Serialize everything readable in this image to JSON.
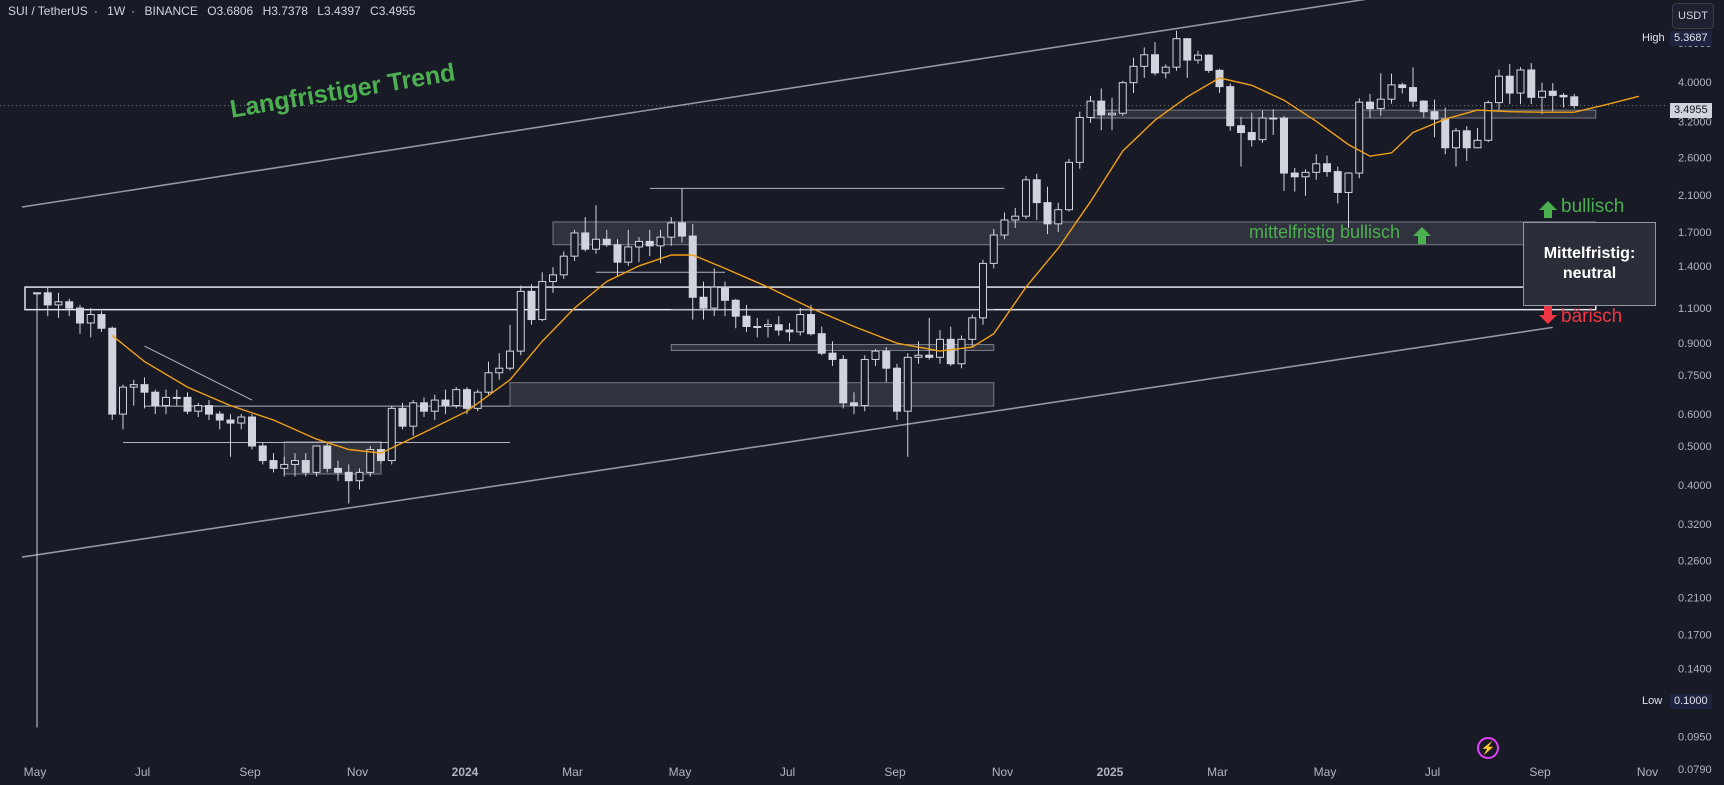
{
  "header": {
    "symbol": "SUI / TetherUS",
    "interval": "1W",
    "exchange": "BINANCE",
    "open": "O3.6806",
    "high": "H3.7378",
    "low": "L3.4397",
    "close": "C3.4955"
  },
  "currency_button": "USDT",
  "price_tags": {
    "high_label": "High",
    "high_value": "5.3687",
    "current": "3.4955",
    "low_label": "Low",
    "low_value": "0.1000"
  },
  "annotations": {
    "long_term": "Langfristiger Trend",
    "mid_bullish": "mittelfristig bullisch",
    "status_line1": "Mittelfristig:",
    "status_line2": "neutral",
    "bullish": "bullisch",
    "bearish": "bärisch"
  },
  "colors": {
    "background": "#181a25",
    "candle": "#d1d4dc",
    "ma_line": "#f0a018",
    "trend_lines": "#9598a1",
    "bullish_green": "#4caf50",
    "bearish_red": "#f23645"
  },
  "chart_data": {
    "type": "candlestick",
    "scale": "log",
    "y_ticks": [
      "5.0000",
      "4.0000",
      "3.2000",
      "2.6000",
      "2.1000",
      "1.7000",
      "1.4000",
      "1.1000",
      "0.9000",
      "0.7500",
      "0.6000",
      "0.5000",
      "0.4000",
      "0.3200",
      "0.2600",
      "0.2100",
      "0.1700",
      "0.1400",
      "0.1150",
      "0.0950",
      "0.0790"
    ],
    "x_ticks": [
      "May",
      "Jul",
      "Sep",
      "Nov",
      "2024",
      "Mar",
      "May",
      "Jul",
      "Sep",
      "Nov",
      "2025",
      "Mar",
      "May",
      "Jul",
      "Sep",
      "Nov"
    ],
    "x_ticks_bold": [
      "2024",
      "2025"
    ],
    "ylim": [
      0.072,
      6.4
    ],
    "candles": [
      [
        1.2,
        1.2,
        0.1,
        1.2
      ],
      [
        1.2,
        1.24,
        1.05,
        1.12
      ],
      [
        1.12,
        1.2,
        1.04,
        1.14
      ],
      [
        1.14,
        1.16,
        1.05,
        1.1
      ],
      [
        1.1,
        1.12,
        0.95,
        1.01
      ],
      [
        1.01,
        1.1,
        0.93,
        1.06
      ],
      [
        1.06,
        1.08,
        0.96,
        0.98
      ],
      [
        0.98,
        0.99,
        0.58,
        0.6
      ],
      [
        0.6,
        0.71,
        0.55,
        0.7
      ],
      [
        0.7,
        0.73,
        0.63,
        0.71
      ],
      [
        0.71,
        0.74,
        0.62,
        0.68
      ],
      [
        0.68,
        0.69,
        0.6,
        0.63
      ],
      [
        0.63,
        0.69,
        0.6,
        0.66
      ],
      [
        0.66,
        0.69,
        0.63,
        0.66
      ],
      [
        0.66,
        0.68,
        0.6,
        0.61
      ],
      [
        0.61,
        0.64,
        0.59,
        0.63
      ],
      [
        0.63,
        0.65,
        0.58,
        0.6
      ],
      [
        0.6,
        0.61,
        0.55,
        0.58
      ],
      [
        0.58,
        0.6,
        0.47,
        0.57
      ],
      [
        0.57,
        0.6,
        0.55,
        0.59
      ],
      [
        0.59,
        0.6,
        0.49,
        0.5
      ],
      [
        0.5,
        0.51,
        0.45,
        0.46
      ],
      [
        0.46,
        0.48,
        0.43,
        0.44
      ],
      [
        0.44,
        0.47,
        0.42,
        0.45
      ],
      [
        0.45,
        0.48,
        0.42,
        0.46
      ],
      [
        0.46,
        0.48,
        0.42,
        0.43
      ],
      [
        0.43,
        0.5,
        0.42,
        0.5
      ],
      [
        0.5,
        0.51,
        0.43,
        0.44
      ],
      [
        0.44,
        0.46,
        0.41,
        0.43
      ],
      [
        0.43,
        0.45,
        0.36,
        0.41
      ],
      [
        0.41,
        0.44,
        0.39,
        0.43
      ],
      [
        0.43,
        0.5,
        0.42,
        0.49
      ],
      [
        0.49,
        0.51,
        0.45,
        0.46
      ],
      [
        0.46,
        0.63,
        0.45,
        0.62
      ],
      [
        0.62,
        0.64,
        0.55,
        0.56
      ],
      [
        0.56,
        0.65,
        0.53,
        0.64
      ],
      [
        0.64,
        0.66,
        0.59,
        0.61
      ],
      [
        0.61,
        0.67,
        0.58,
        0.65
      ],
      [
        0.65,
        0.69,
        0.6,
        0.63
      ],
      [
        0.63,
        0.7,
        0.62,
        0.69
      ],
      [
        0.69,
        0.7,
        0.6,
        0.62
      ],
      [
        0.62,
        0.69,
        0.61,
        0.68
      ],
      [
        0.68,
        0.81,
        0.67,
        0.76
      ],
      [
        0.76,
        0.85,
        0.73,
        0.78
      ],
      [
        0.78,
        1.0,
        0.77,
        0.86
      ],
      [
        0.86,
        1.25,
        0.84,
        1.21
      ],
      [
        1.21,
        1.26,
        1.0,
        1.03
      ],
      [
        1.03,
        1.35,
        1.02,
        1.28
      ],
      [
        1.28,
        1.39,
        1.2,
        1.33
      ],
      [
        1.33,
        1.52,
        1.3,
        1.48
      ],
      [
        1.48,
        1.72,
        1.44,
        1.69
      ],
      [
        1.69,
        1.85,
        1.52,
        1.54
      ],
      [
        1.54,
        1.98,
        1.5,
        1.63
      ],
      [
        1.63,
        1.72,
        1.56,
        1.58
      ],
      [
        1.58,
        1.63,
        1.32,
        1.43
      ],
      [
        1.43,
        1.72,
        1.4,
        1.56
      ],
      [
        1.56,
        1.65,
        1.43,
        1.61
      ],
      [
        1.61,
        1.72,
        1.48,
        1.57
      ],
      [
        1.57,
        1.72,
        1.42,
        1.65
      ],
      [
        1.65,
        1.85,
        1.57,
        1.79
      ],
      [
        1.79,
        2.18,
        1.6,
        1.66
      ],
      [
        1.66,
        1.78,
        1.03,
        1.17
      ],
      [
        1.17,
        1.28,
        1.03,
        1.1
      ],
      [
        1.1,
        1.38,
        1.05,
        1.24
      ],
      [
        1.24,
        1.28,
        1.05,
        1.15
      ],
      [
        1.15,
        1.16,
        0.98,
        1.05
      ],
      [
        1.05,
        1.12,
        0.96,
        0.99
      ],
      [
        0.99,
        1.04,
        0.93,
        0.99
      ],
      [
        0.99,
        1.03,
        0.93,
        1.0
      ],
      [
        1.0,
        1.05,
        0.94,
        0.97
      ],
      [
        0.97,
        1.01,
        0.91,
        0.96
      ],
      [
        0.96,
        1.1,
        0.94,
        1.06
      ],
      [
        1.06,
        1.12,
        0.94,
        0.95
      ],
      [
        0.95,
        0.99,
        0.84,
        0.85
      ],
      [
        0.85,
        0.91,
        0.79,
        0.82
      ],
      [
        0.82,
        0.84,
        0.62,
        0.64
      ],
      [
        0.64,
        0.68,
        0.6,
        0.63
      ],
      [
        0.63,
        0.84,
        0.61,
        0.82
      ],
      [
        0.82,
        0.87,
        0.79,
        0.86
      ],
      [
        0.86,
        0.88,
        0.72,
        0.78
      ],
      [
        0.78,
        0.8,
        0.58,
        0.61
      ],
      [
        0.61,
        0.85,
        0.47,
        0.83
      ],
      [
        0.83,
        0.91,
        0.8,
        0.84
      ],
      [
        0.84,
        1.04,
        0.82,
        0.83
      ],
      [
        0.83,
        0.97,
        0.8,
        0.92
      ],
      [
        0.92,
        0.99,
        0.79,
        0.8
      ],
      [
        0.8,
        0.94,
        0.78,
        0.92
      ],
      [
        0.92,
        1.06,
        0.88,
        1.04
      ],
      [
        1.04,
        1.45,
        1.0,
        1.42
      ],
      [
        1.42,
        1.73,
        1.38,
        1.67
      ],
      [
        1.67,
        1.9,
        1.63,
        1.82
      ],
      [
        1.82,
        1.95,
        1.74,
        1.86
      ],
      [
        1.86,
        2.34,
        1.83,
        2.29
      ],
      [
        2.29,
        2.37,
        1.82,
        2.01
      ],
      [
        2.01,
        2.2,
        1.68,
        1.78
      ],
      [
        1.78,
        2.01,
        1.7,
        1.93
      ],
      [
        1.93,
        2.58,
        1.91,
        2.53
      ],
      [
        2.53,
        3.38,
        2.44,
        3.27
      ],
      [
        3.27,
        3.7,
        3.17,
        3.59
      ],
      [
        3.59,
        3.86,
        3.04,
        3.32
      ],
      [
        3.32,
        3.66,
        3.04,
        3.35
      ],
      [
        3.35,
        4.03,
        3.3,
        3.99
      ],
      [
        3.99,
        4.6,
        3.76,
        4.38
      ],
      [
        4.38,
        4.88,
        4.1,
        4.68
      ],
      [
        4.68,
        5.03,
        4.16,
        4.22
      ],
      [
        4.22,
        4.43,
        4.09,
        4.36
      ],
      [
        4.36,
        5.37,
        4.27,
        5.13
      ],
      [
        5.13,
        5.15,
        4.1,
        4.54
      ],
      [
        4.54,
        4.79,
        4.45,
        4.67
      ],
      [
        4.67,
        4.69,
        4.22,
        4.28
      ],
      [
        4.28,
        4.32,
        3.76,
        3.9
      ],
      [
        3.9,
        3.97,
        3.03,
        3.12
      ],
      [
        3.12,
        3.28,
        2.47,
        3.0
      ],
      [
        3.0,
        3.36,
        2.77,
        2.88
      ],
      [
        2.88,
        3.4,
        2.83,
        3.26
      ],
      [
        3.26,
        3.43,
        2.96,
        3.26
      ],
      [
        3.26,
        3.3,
        2.15,
        2.38
      ],
      [
        2.38,
        2.45,
        2.14,
        2.33
      ],
      [
        2.33,
        2.43,
        2.09,
        2.39
      ],
      [
        2.39,
        2.65,
        2.29,
        2.51
      ],
      [
        2.51,
        2.63,
        2.33,
        2.4
      ],
      [
        2.4,
        2.47,
        2.0,
        2.13
      ],
      [
        2.13,
        2.39,
        1.74,
        2.38
      ],
      [
        2.38,
        3.65,
        2.31,
        3.57
      ],
      [
        3.57,
        3.74,
        3.26,
        3.44
      ],
      [
        3.44,
        4.21,
        3.3,
        3.63
      ],
      [
        3.63,
        4.2,
        3.54,
        3.94
      ],
      [
        3.94,
        3.99,
        3.75,
        3.88
      ],
      [
        3.88,
        4.35,
        3.47,
        3.59
      ],
      [
        3.59,
        3.61,
        3.27,
        3.38
      ],
      [
        3.38,
        3.62,
        2.92,
        3.24
      ],
      [
        3.24,
        3.46,
        2.65,
        2.75
      ],
      [
        2.75,
        3.08,
        2.47,
        3.03
      ],
      [
        3.03,
        3.11,
        2.55,
        2.75
      ],
      [
        2.75,
        3.08,
        2.74,
        2.87
      ],
      [
        2.87,
        3.6,
        2.84,
        3.56
      ],
      [
        3.56,
        4.3,
        3.42,
        4.14
      ],
      [
        4.14,
        4.44,
        3.53,
        3.76
      ],
      [
        3.76,
        4.36,
        3.53,
        4.29
      ],
      [
        4.29,
        4.46,
        3.53,
        3.67
      ],
      [
        3.67,
        3.99,
        3.33,
        3.8
      ],
      [
        3.8,
        3.98,
        3.39,
        3.71
      ],
      [
        3.71,
        3.76,
        3.46,
        3.68
      ],
      [
        3.68,
        3.74,
        3.44,
        3.5
      ]
    ],
    "moving_average": [
      [
        7,
        0.94
      ],
      [
        10,
        0.81
      ],
      [
        14,
        0.7
      ],
      [
        18,
        0.63
      ],
      [
        22,
        0.58
      ],
      [
        26,
        0.52
      ],
      [
        29,
        0.49
      ],
      [
        32,
        0.48
      ],
      [
        36,
        0.54
      ],
      [
        40,
        0.61
      ],
      [
        44,
        0.73
      ],
      [
        47,
        0.91
      ],
      [
        50,
        1.1
      ],
      [
        53,
        1.28
      ],
      [
        56,
        1.4
      ],
      [
        59,
        1.49
      ],
      [
        61,
        1.49
      ],
      [
        64,
        1.38
      ],
      [
        68,
        1.24
      ],
      [
        72,
        1.1
      ],
      [
        76,
        0.99
      ],
      [
        80,
        0.9
      ],
      [
        84,
        0.86
      ],
      [
        87,
        0.88
      ],
      [
        89,
        0.95
      ],
      [
        92,
        1.24
      ],
      [
        95,
        1.55
      ],
      [
        98,
        2.02
      ],
      [
        101,
        2.7
      ],
      [
        104,
        3.22
      ],
      [
        107,
        3.68
      ],
      [
        110,
        4.1
      ],
      [
        113,
        3.93
      ],
      [
        116,
        3.61
      ],
      [
        119,
        3.2
      ],
      [
        122,
        2.8
      ],
      [
        124,
        2.62
      ],
      [
        126,
        2.67
      ],
      [
        128,
        3.0
      ],
      [
        131,
        3.24
      ],
      [
        134,
        3.41
      ],
      [
        137,
        3.38
      ],
      [
        140,
        3.37
      ],
      [
        143,
        3.37
      ],
      [
        146,
        3.52
      ],
      [
        149,
        3.69
      ]
    ],
    "zones": [
      {
        "x0": 48,
        "x1": 145,
        "y_low": 1.58,
        "y_high": 1.8,
        "style": "filled"
      },
      {
        "x0": -1,
        "x1": 145,
        "y_low": 1.09,
        "y_high": 1.24,
        "style": "outline-bright"
      },
      {
        "x0": 59,
        "x1": 89,
        "y_low": 0.863,
        "y_high": 0.893,
        "style": "filled"
      },
      {
        "x0": 44,
        "x1": 89,
        "y_low": 0.628,
        "y_high": 0.718,
        "style": "filled"
      },
      {
        "x0": 23,
        "x1": 32,
        "y_low": 0.426,
        "y_high": 0.512,
        "style": "filled"
      },
      {
        "x0": 98,
        "x1": 145,
        "y_low": 3.26,
        "y_high": 3.41,
        "style": "filled"
      }
    ],
    "reference_lines": [
      {
        "x0": 59,
        "x1": 89,
        "y": 1.09
      },
      {
        "x0": 8,
        "x1": 44,
        "y": 0.51
      },
      {
        "x0": 10,
        "x1": 44,
        "y": 0.628
      },
      {
        "x0": 52,
        "x1": 64,
        "y": 1.35
      },
      {
        "x0": 57,
        "x1": 90,
        "y": 2.18
      }
    ],
    "trend_lines": [
      {
        "x0": -1,
        "y0": 1.96,
        "x1": 128,
        "y1": 6.7
      },
      {
        "x0": -1,
        "y0": 0.265,
        "x1": 141,
        "y1": 0.985
      },
      {
        "x0": 10,
        "y0": 0.885,
        "x1": 20,
        "y1": 0.65
      }
    ]
  }
}
